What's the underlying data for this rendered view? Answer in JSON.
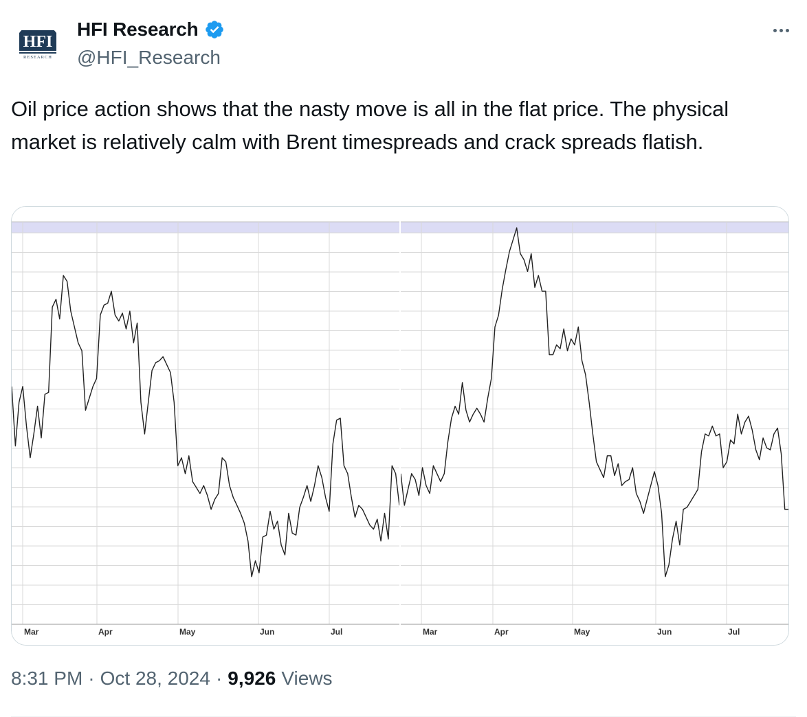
{
  "author": {
    "display_name": "HFI Research",
    "handle": "@HFI_Research",
    "verified": true,
    "avatar_logo_text": "HFI",
    "avatar_logo_subtext": "RESEARCH"
  },
  "tweet": {
    "text": "Oil price action shows that the nasty move is all in the flat price. The physical market is relatively calm with Brent timespreads and crack spreads flatish."
  },
  "meta": {
    "time": "8:31 PM",
    "separator": "·",
    "date": "Oct 28, 2024",
    "views_count": "9,926",
    "views_label": "Views"
  },
  "icons": {
    "verified": "verified-badge-icon",
    "more": "more-options-icon"
  },
  "colors": {
    "verified_blue": "#1d9bf0",
    "line": "#222222",
    "band": "#dcdcf5",
    "grid": "#d9d9d9"
  },
  "chart_data": [
    {
      "type": "line",
      "x_labels": [
        "Mar",
        "Apr",
        "May",
        "Jun",
        "Jul"
      ],
      "grid": true,
      "series": [
        {
          "values": [
            60.0,
            45.0,
            56.0,
            60.0,
            50.0,
            42.0,
            48.0,
            55.0,
            47.0,
            58.0,
            58.5,
            80.0,
            82.0,
            77.0,
            88.0,
            86.5,
            79.0,
            75.0,
            71.0,
            69.0,
            54.0,
            57.0,
            60.0,
            62.0,
            78.0,
            80.5,
            81.0,
            84.0,
            78.0,
            76.5,
            78.5,
            74.5,
            79.0,
            71.0,
            76.0,
            56.0,
            48.0,
            56.0,
            64.0,
            66.0,
            66.5,
            67.5,
            65.5,
            63.5,
            56.0,
            40.0,
            42.0,
            38.0,
            42.5,
            36.0,
            34.5,
            33.0,
            35.0,
            32.5,
            29.0,
            31.5,
            33.0,
            42.0,
            41.0,
            35.0,
            32.0,
            30.0,
            28.0,
            25.5,
            21.0,
            12.0,
            16.0,
            13.0,
            22.0,
            22.5,
            28.5,
            24.0,
            26.0,
            20.0,
            17.5,
            28.0,
            23.0,
            22.5,
            29.5,
            32.0,
            35.0,
            31.0,
            35.0,
            40.0,
            37.0,
            32.0,
            28.5,
            45.5,
            51.5,
            52.0,
            40.0,
            38.0,
            32.0,
            27.0,
            30.0,
            29.0,
            27.0,
            25.0,
            24.0,
            26.5,
            21.0,
            28.0,
            21.5,
            40.0,
            38.0,
            30.0
          ]
        }
      ]
    },
    {
      "type": "line",
      "x_labels": [
        "Mar",
        "Apr",
        "May",
        "Jun",
        "Jul"
      ],
      "grid": true,
      "series": [
        {
          "values": [
            38.0,
            30.0,
            34.0,
            38.0,
            36.5,
            32.5,
            39.5,
            35.0,
            33.0,
            40.0,
            38.0,
            36.0,
            38.0,
            46.0,
            52.0,
            55.0,
            53.0,
            61.0,
            54.0,
            51.0,
            53.0,
            54.5,
            53.0,
            51.0,
            57.0,
            62.0,
            75.0,
            78.0,
            84.5,
            89.5,
            94.0,
            97.0,
            100.0,
            93.5,
            92.0,
            89.0,
            93.5,
            85.0,
            88.0,
            84.0,
            84.0,
            68.0,
            68.0,
            70.5,
            69.5,
            74.5,
            69.0,
            72.0,
            70.5,
            75.0,
            66.5,
            63.0,
            56.0,
            48.0,
            41.0,
            39.0,
            37.0,
            42.5,
            42.5,
            37.5,
            40.5,
            35.0,
            36.0,
            36.5,
            39.5,
            33.0,
            31.0,
            28.0,
            31.5,
            35.0,
            38.5,
            35.0,
            28.0,
            12.0,
            15.0,
            21.5,
            26.0,
            20.0,
            29.0,
            29.5,
            31.0,
            32.5,
            34.0,
            43.5,
            48.0,
            47.5,
            50.0,
            47.5,
            48.0,
            39.5,
            41.0,
            46.5,
            45.5,
            53.0,
            48.0,
            51.0,
            52.5,
            49.0,
            44.0,
            41.5,
            47.0,
            44.5,
            44.0,
            48.0,
            49.5,
            43.0,
            29.0,
            29.0
          ]
        }
      ]
    }
  ]
}
